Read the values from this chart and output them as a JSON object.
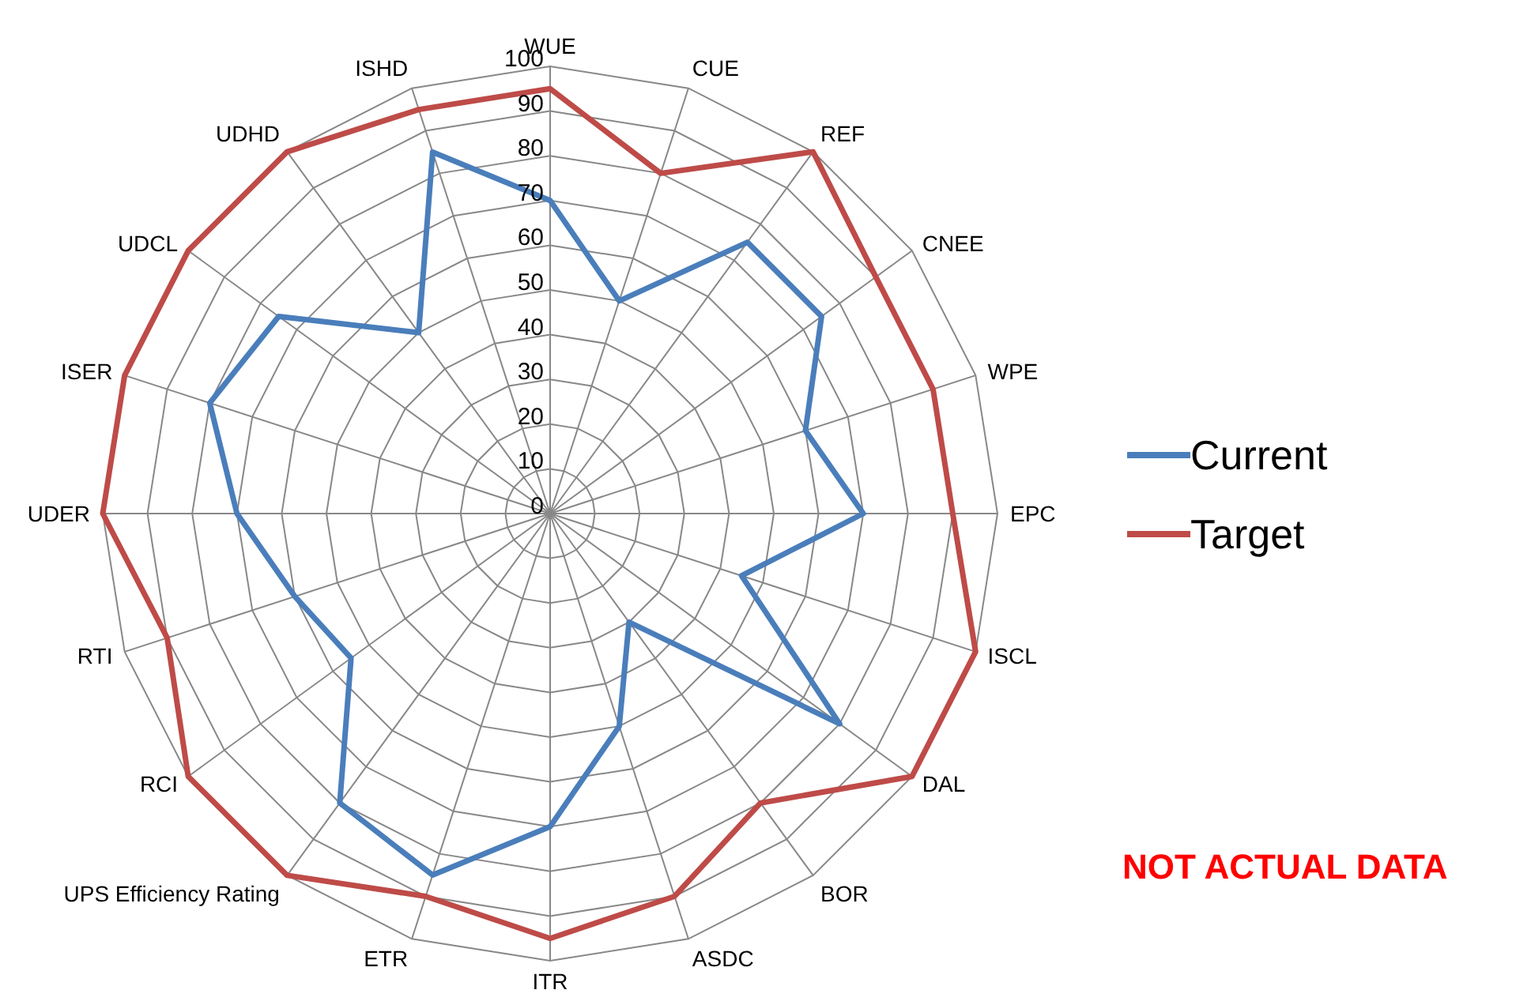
{
  "chart_data": {
    "type": "radar",
    "categories": [
      "WUE",
      "CUE",
      "REF",
      "CNEE",
      "WPE",
      "EPC",
      "ISCL",
      "DAL",
      "BOR",
      "ASDC",
      "ITR",
      "ETR",
      "UPS Efficiency Rating",
      "RCI",
      "RTI",
      "UDER",
      "ISER",
      "UDCL",
      "UDHD",
      "ISHD"
    ],
    "series": [
      {
        "name": "Current",
        "color": "#4a7ebb",
        "values": [
          70,
          50,
          75,
          75,
          60,
          70,
          45,
          80,
          30,
          50,
          70,
          85,
          80,
          55,
          60,
          70,
          80,
          75,
          50,
          85
        ]
      },
      {
        "name": "Target",
        "color": "#be4b48",
        "values": [
          95,
          80,
          100,
          90,
          90,
          90,
          100,
          100,
          80,
          90,
          95,
          90,
          100,
          100,
          90,
          100,
          100,
          100,
          100,
          95
        ]
      }
    ],
    "ylim": [
      0,
      100
    ],
    "yticks": [
      0,
      10,
      20,
      30,
      40,
      50,
      60,
      70,
      80,
      90,
      100
    ],
    "grid": true,
    "legend": "right",
    "marker": "none",
    "line_style": "solid",
    "annotations": [
      "NOT ACTUAL DATA"
    ]
  }
}
